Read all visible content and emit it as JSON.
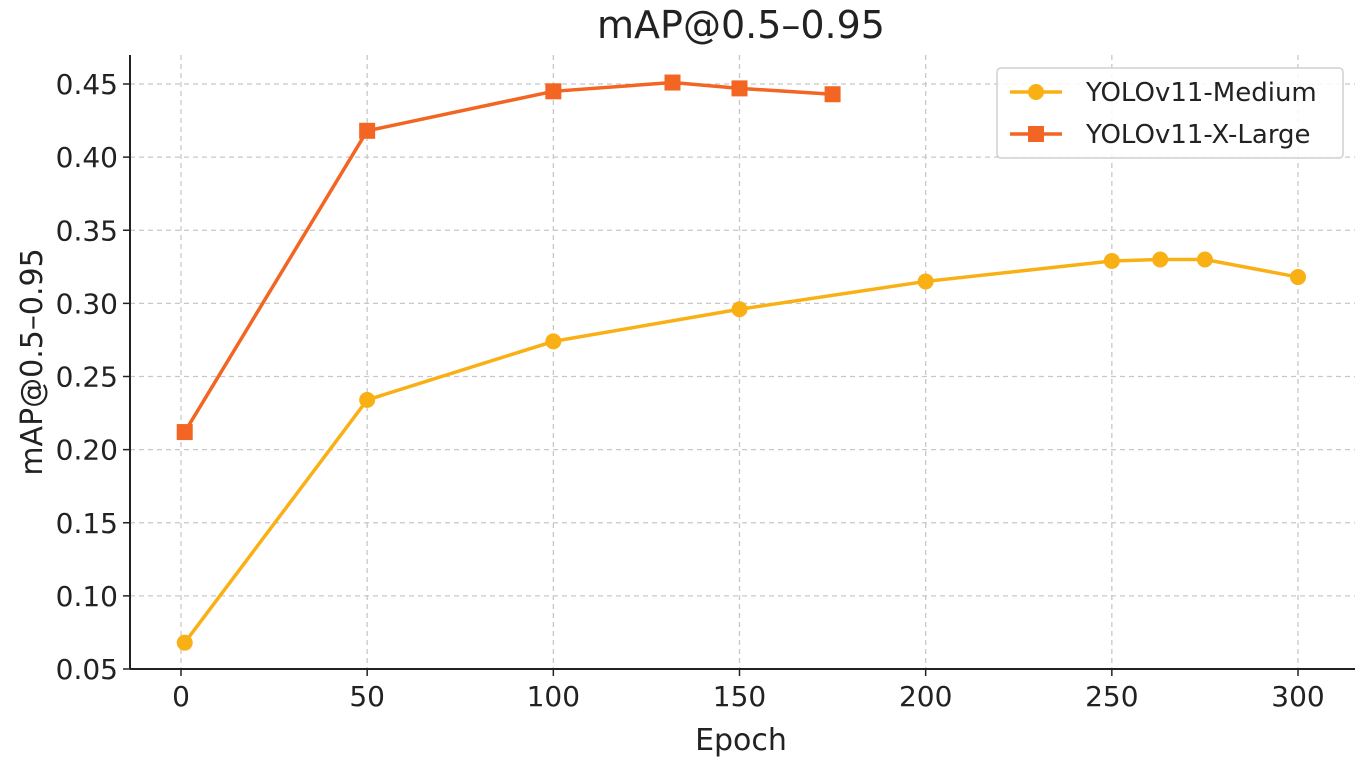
{
  "chart_data": {
    "type": "line",
    "title": "mAP@0.5–0.95",
    "xlabel": "Epoch",
    "ylabel": "mAP@0.5–0.95",
    "xlim": [
      -14,
      315
    ],
    "ylim": [
      0.05,
      0.47
    ],
    "xticks": [
      0,
      50,
      100,
      150,
      200,
      250,
      300
    ],
    "yticks": [
      0.05,
      0.1,
      0.15,
      0.2,
      0.25,
      0.3,
      0.35,
      0.4,
      0.45
    ],
    "ytick_labels": [
      "0.05",
      "0.10",
      "0.15",
      "0.20",
      "0.25",
      "0.30",
      "0.35",
      "0.40",
      "0.45"
    ],
    "grid": true,
    "legend_position": "top-right",
    "series": [
      {
        "name": "YOLOv11-Medium",
        "color": "#F9B015",
        "marker": "circle",
        "x": [
          1,
          50,
          100,
          150,
          200,
          250,
          263,
          275,
          300
        ],
        "y": [
          0.068,
          0.234,
          0.274,
          0.296,
          0.315,
          0.329,
          0.33,
          0.33,
          0.318
        ]
      },
      {
        "name": "YOLOv11-X-Large",
        "color": "#F26522",
        "marker": "square",
        "x": [
          1,
          50,
          100,
          132,
          150,
          175
        ],
        "y": [
          0.212,
          0.418,
          0.445,
          0.451,
          0.447,
          0.443
        ]
      }
    ]
  }
}
